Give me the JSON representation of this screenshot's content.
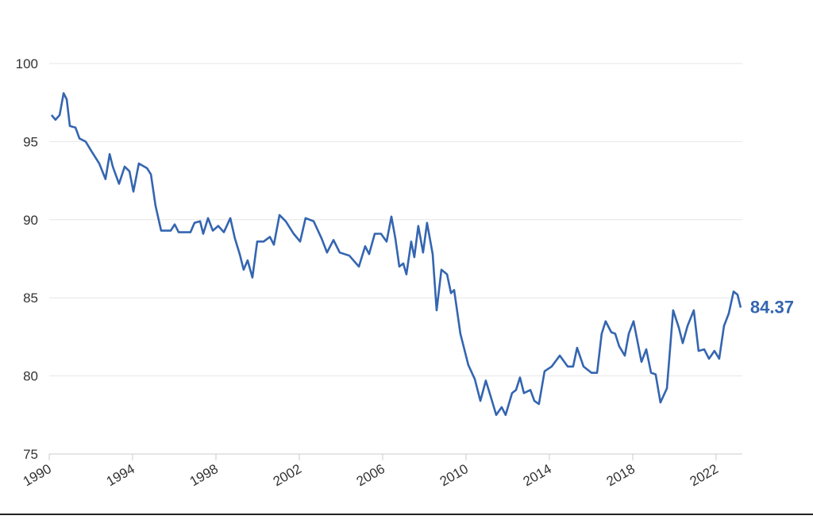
{
  "chart_data": {
    "type": "line",
    "color": "#3465b0",
    "grid": true,
    "x": [
      1990.11,
      1990.3,
      1990.5,
      1990.69,
      1990.84,
      1990.99,
      1991.26,
      1991.45,
      1991.75,
      1992.02,
      1992.4,
      1992.7,
      1992.9,
      1993.05,
      1993.35,
      1993.62,
      1993.85,
      1994.04,
      1994.3,
      1994.69,
      1994.88,
      1995.1,
      1995.37,
      1995.83,
      1996.02,
      1996.21,
      1996.78,
      1996.97,
      1997.24,
      1997.39,
      1997.62,
      1997.85,
      1998.11,
      1998.38,
      1998.69,
      1998.91,
      1999.14,
      1999.33,
      1999.52,
      1999.75,
      1999.98,
      2000.29,
      2000.59,
      2000.78,
      2001.05,
      2001.35,
      2001.73,
      2002.04,
      2002.3,
      2002.69,
      2003.07,
      2003.33,
      2003.64,
      2003.94,
      2004.4,
      2004.86,
      2005.16,
      2005.35,
      2005.62,
      2005.92,
      2006.19,
      2006.42,
      2006.61,
      2006.8,
      2006.99,
      2007.14,
      2007.37,
      2007.52,
      2007.71,
      2007.94,
      2008.13,
      2008.4,
      2008.59,
      2008.82,
      2009.09,
      2009.28,
      2009.43,
      2009.73,
      2010.11,
      2010.42,
      2010.69,
      2010.95,
      2011.18,
      2011.45,
      2011.71,
      2011.9,
      2012.21,
      2012.4,
      2012.59,
      2012.78,
      2013.09,
      2013.28,
      2013.5,
      2013.77,
      2014.11,
      2014.5,
      2014.88,
      2015.14,
      2015.33,
      2015.64,
      2016.02,
      2016.29,
      2016.51,
      2016.7,
      2016.97,
      2017.16,
      2017.35,
      2017.62,
      2017.81,
      2018.04,
      2018.23,
      2018.42,
      2018.65,
      2018.88,
      2019.1,
      2019.33,
      2019.64,
      2019.94,
      2020.21,
      2020.4,
      2020.63,
      2020.93,
      2021.16,
      2021.43,
      2021.66,
      2021.92,
      2022.15,
      2022.38,
      2022.61,
      2022.84,
      2023.03,
      2023.18
    ],
    "values": [
      96.7,
      96.4,
      96.7,
      98.1,
      97.7,
      96.0,
      95.9,
      95.2,
      95.0,
      94.4,
      93.6,
      92.6,
      94.2,
      93.4,
      92.3,
      93.4,
      93.1,
      91.8,
      93.6,
      93.3,
      92.9,
      90.9,
      89.3,
      89.3,
      89.7,
      89.2,
      89.2,
      89.8,
      89.9,
      89.1,
      90.1,
      89.3,
      89.6,
      89.2,
      90.1,
      88.8,
      87.8,
      86.8,
      87.4,
      86.3,
      88.6,
      88.6,
      88.9,
      88.4,
      90.3,
      89.9,
      89.1,
      88.6,
      90.1,
      89.9,
      88.8,
      87.9,
      88.7,
      87.9,
      87.7,
      87.0,
      88.3,
      87.8,
      89.1,
      89.1,
      88.6,
      90.2,
      88.8,
      87.0,
      87.2,
      86.5,
      88.6,
      87.6,
      89.6,
      87.9,
      89.8,
      87.8,
      84.2,
      86.8,
      86.5,
      85.3,
      85.5,
      82.7,
      80.7,
      79.8,
      78.4,
      79.7,
      78.7,
      77.5,
      78.0,
      77.5,
      78.9,
      79.1,
      79.9,
      78.9,
      79.1,
      78.4,
      78.2,
      80.3,
      80.6,
      81.3,
      80.6,
      80.6,
      81.8,
      80.6,
      80.2,
      80.2,
      82.7,
      83.5,
      82.8,
      82.7,
      81.9,
      81.3,
      82.7,
      83.5,
      82.2,
      80.9,
      81.7,
      80.2,
      80.1,
      78.3,
      79.2,
      84.2,
      83.1,
      82.1,
      83.2,
      84.2,
      81.6,
      81.7,
      81.1,
      81.6,
      81.1,
      83.2,
      84.0,
      85.4,
      85.2,
      84.37
    ],
    "xlim": [
      1990,
      2023.26
    ],
    "xticks": [
      1990,
      1994,
      1998,
      2002,
      2006,
      2010,
      2014,
      2018,
      2022
    ],
    "ylim": [
      75,
      100
    ],
    "yticks": [
      75,
      80,
      85,
      90,
      95,
      100
    ]
  }
}
